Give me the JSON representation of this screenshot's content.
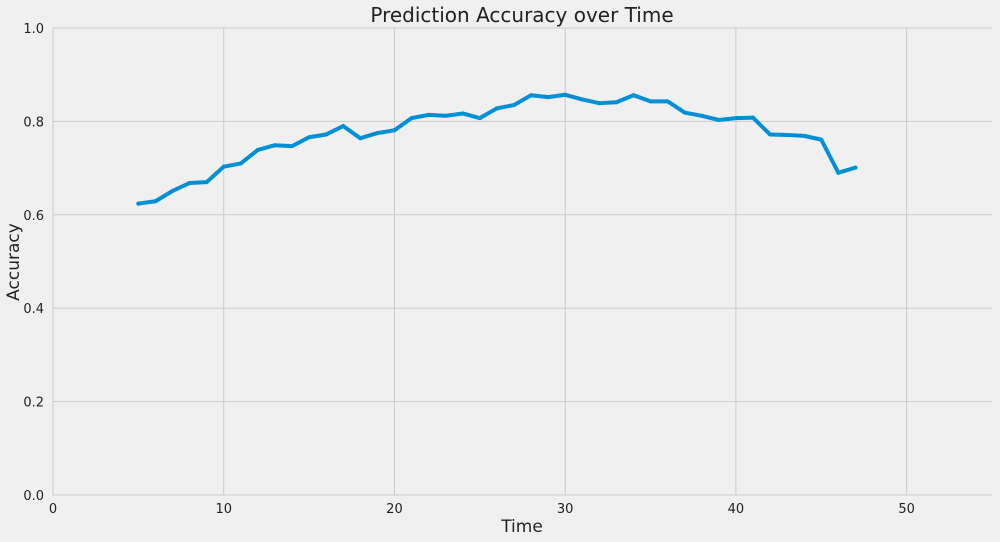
{
  "chart_data": {
    "type": "line",
    "title": "Prediction Accuracy over Time",
    "xlabel": "Time",
    "ylabel": "Accuracy",
    "xlim": [
      0,
      55
    ],
    "ylim": [
      0.0,
      1.0
    ],
    "xticks": [
      0,
      10,
      20,
      30,
      40,
      50
    ],
    "xtick_labels": [
      "0",
      "10",
      "20",
      "30",
      "40",
      "50"
    ],
    "yticks": [
      0.0,
      0.2,
      0.4,
      0.6,
      0.8,
      1.0
    ],
    "ytick_labels": [
      "0.0",
      "0.2",
      "0.4",
      "0.6",
      "0.8",
      "1.0"
    ],
    "grid": true,
    "colors": {
      "background": "#f0f0f0",
      "grid": "#cbcbcb",
      "line": "#008fd5"
    },
    "series": [
      {
        "x": [
          5,
          6,
          7,
          8,
          9,
          10,
          11,
          12,
          13,
          14,
          15,
          16,
          17,
          18,
          19,
          20,
          21,
          22,
          23,
          24,
          25,
          26,
          27,
          28,
          29,
          30,
          31,
          32,
          33,
          34,
          35,
          36,
          37,
          38,
          39,
          40,
          41,
          42,
          43,
          44,
          45,
          46,
          47
        ],
        "values": [
          0.624,
          0.629,
          0.651,
          0.668,
          0.67,
          0.703,
          0.71,
          0.739,
          0.749,
          0.747,
          0.766,
          0.772,
          0.79,
          0.764,
          0.775,
          0.781,
          0.807,
          0.814,
          0.812,
          0.817,
          0.807,
          0.828,
          0.835,
          0.856,
          0.852,
          0.857,
          0.847,
          0.839,
          0.841,
          0.856,
          0.843,
          0.843,
          0.819,
          0.812,
          0.803,
          0.807,
          0.808,
          0.772,
          0.771,
          0.769,
          0.761,
          0.69,
          0.701
        ]
      }
    ]
  }
}
